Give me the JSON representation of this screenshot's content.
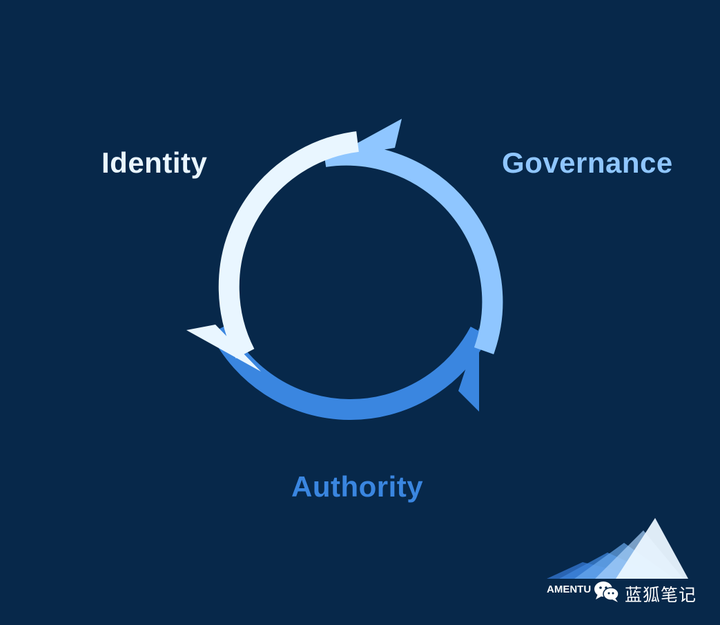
{
  "diagram": {
    "labels": {
      "identity": "Identity",
      "governance": "Governance",
      "authority": "Authority"
    },
    "colors": {
      "background": "#07284a",
      "identity": "#e9f6ff",
      "governance": "#8fc6ff",
      "authority": "#3a86e0"
    }
  },
  "watermark": {
    "brand": "AMENTU",
    "wechat_account": "蓝狐笔记"
  }
}
